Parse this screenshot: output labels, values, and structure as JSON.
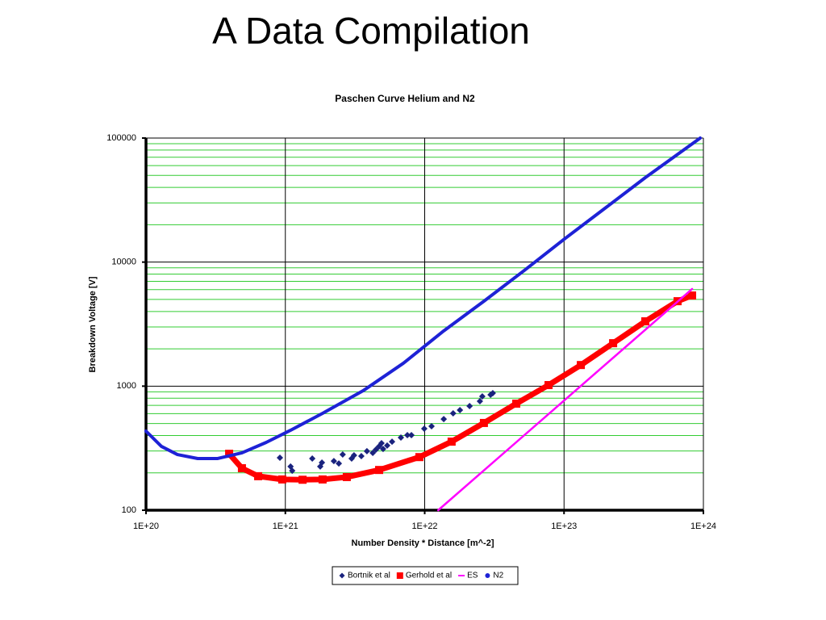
{
  "slide_title": "A Data Compilation",
  "chart_data": {
    "type": "scatter",
    "title": "Paschen Curve Helium and N2",
    "x_label": "Number Density * Distance [m^-2]",
    "y_label": "Breakdown Voltage [V]",
    "xscale": "log",
    "yscale": "log",
    "grid": true,
    "minor_grid": true,
    "legend": "bottom",
    "xlim": [
      1e+20,
      1e+24
    ],
    "xticks": [
      {
        "value": 1e+20,
        "label": "1E+20"
      },
      {
        "value": 1e+21,
        "label": "1E+21"
      },
      {
        "value": 1e+22,
        "label": "1E+22"
      },
      {
        "value": 1e+23,
        "label": "1E+23"
      },
      {
        "value": 1e+24,
        "label": "1E+24"
      }
    ],
    "ylim": [
      100,
      100000
    ],
    "yticks": [
      100,
      1000,
      10000,
      100000
    ],
    "series": [
      {
        "name": "Bortnik et al",
        "color": "#1a237e",
        "marker": "diamond",
        "x": [
          9.14e+20,
          1.09e+21,
          1.12e+21,
          1.56e+21,
          1.78e+21,
          1.83e+21,
          2.23e+21,
          2.42e+21,
          2.58e+21,
          2.99e+21,
          3.11e+21,
          3.51e+21,
          3.85e+21,
          4.24e+21,
          4.47e+21,
          4.71e+21,
          4.9e+21,
          5.03e+21,
          5.38e+21,
          5.83e+21,
          6.75e+21,
          7.51e+21,
          8.03e+21,
          9.93e+21,
          1.12e+22,
          1.37e+22,
          1.6e+22,
          1.79e+22,
          2.1e+22,
          2.49e+22,
          2.59e+22,
          2.97e+22,
          3.08e+22
        ],
        "values": [
          265,
          225,
          208,
          261,
          225,
          242,
          249,
          238,
          281,
          261,
          277,
          273,
          299,
          290,
          308,
          327,
          347,
          312,
          332,
          357,
          385,
          403,
          403,
          454,
          475,
          543,
          604,
          641,
          691,
          756,
          827,
          853,
          878
        ]
      },
      {
        "name": "Gerhold et al",
        "color": "#ff0000",
        "marker": "square",
        "x": [
          3.95e+20,
          4.88e+20,
          6.38e+20,
          9.5e+20,
          1.33e+21,
          1.85e+21,
          2.76e+21,
          4.71e+21,
          9.16e+21,
          1.56e+22,
          2.66e+22,
          4.54e+22,
          7.74e+22,
          1.32e+23,
          2.25e+23,
          3.83e+23,
          6.53e+23,
          8.3e+23
        ],
        "values": [
          285,
          218,
          188,
          177,
          176,
          177,
          185,
          211,
          268,
          357,
          505,
          723,
          1020,
          1480,
          2220,
          3330,
          4840,
          5380
        ]
      },
      {
        "name": "ES",
        "color": "#ff00ff",
        "marker": "line",
        "x": [
          1.25e+22,
          8.3e+23
        ],
        "values": [
          100,
          6070
        ]
      },
      {
        "name": "N2",
        "color": "#1e22d6",
        "marker": "circle",
        "x": [
          1e+20,
          1.29e+20,
          1.68e+20,
          2.35e+20,
          3.27e+20,
          4.88e+20,
          7.29e+20,
          1.09e+21,
          1.85e+21,
          3.61e+21,
          7.03e+21,
          1.01e+22,
          1.37e+22,
          2.66e+22,
          5.19e+22,
          1.01e+23,
          1.97e+23,
          3.83e+23,
          9.49e+23
        ],
        "values": [
          434,
          327,
          281,
          261,
          261,
          290,
          352,
          441,
          604,
          918,
          1530,
          2120,
          2790,
          4840,
          8570,
          15400,
          27200,
          48000,
          100000
        ]
      }
    ]
  }
}
